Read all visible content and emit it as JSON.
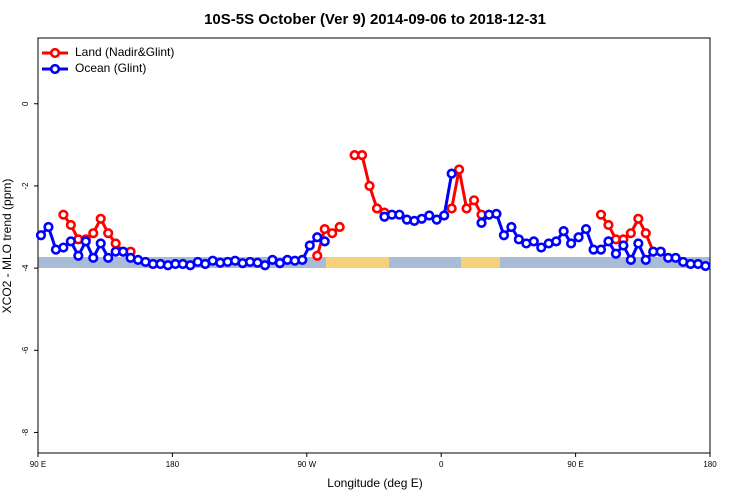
{
  "chart_data": {
    "type": "line",
    "title": "10S-5S October (Ver 9)   2014-09-06 to 2018-12-31",
    "x_label": "Longitude (deg E)",
    "y_label": "XCO2 - MLO trend (ppm)",
    "x": [
      92,
      97,
      102,
      107,
      112,
      117,
      122,
      127,
      132,
      137,
      142,
      147,
      152,
      157,
      162,
      167,
      172,
      177,
      182,
      187,
      192,
      197,
      202,
      207,
      212,
      217,
      222,
      227,
      232,
      237,
      242,
      247,
      252,
      257,
      262,
      267,
      272,
      277,
      282,
      287,
      292,
      297,
      302,
      307,
      312,
      317,
      322,
      327,
      332,
      337,
      342,
      347,
      352,
      357,
      362,
      367,
      372,
      377,
      382,
      387,
      392,
      397,
      402,
      407,
      412,
      417,
      422,
      427,
      432,
      437,
      442,
      447,
      452,
      457,
      462,
      467,
      472,
      477,
      482,
      487,
      492,
      497,
      502,
      507,
      512,
      517,
      522,
      527,
      532,
      537
    ],
    "series": [
      {
        "name": "Land (Nadir&Glint)",
        "color": "#ff0000",
        "values": [
          null,
          null,
          null,
          -2.7,
          -2.95,
          -3.3,
          -3.3,
          -3.15,
          -2.8,
          -3.15,
          -3.4,
          -3.6,
          -3.6,
          null,
          null,
          null,
          null,
          null,
          null,
          null,
          null,
          null,
          null,
          null,
          null,
          null,
          null,
          null,
          null,
          null,
          null,
          null,
          null,
          null,
          null,
          null,
          null,
          -3.7,
          -3.05,
          -3.15,
          -3.0,
          null,
          -1.25,
          -1.25,
          -2.0,
          -2.55,
          -2.65,
          null,
          null,
          null,
          null,
          null,
          null,
          null,
          null,
          -2.55,
          -1.6,
          -2.55,
          -2.35,
          -2.7,
          -2.7,
          null,
          null,
          null,
          null,
          null,
          null,
          null,
          null,
          null,
          null,
          null,
          null,
          null,
          null,
          -2.7,
          -2.95,
          -3.3,
          -3.3,
          -3.15,
          -2.8,
          -3.15,
          -3.6,
          -3.6,
          null,
          null,
          null,
          null,
          null,
          null
        ]
      },
      {
        "name": "Ocean (Glint)",
        "color": "#0000ff",
        "values": [
          -3.2,
          -3.0,
          -3.55,
          -3.5,
          -3.35,
          -3.7,
          -3.35,
          -3.75,
          -3.4,
          -3.75,
          -3.6,
          -3.6,
          -3.75,
          -3.8,
          -3.85,
          -3.9,
          -3.9,
          -3.93,
          -3.9,
          -3.9,
          -3.93,
          -3.85,
          -3.9,
          -3.82,
          -3.87,
          -3.85,
          -3.82,
          -3.88,
          -3.85,
          -3.87,
          -3.93,
          -3.8,
          -3.88,
          -3.8,
          -3.82,
          -3.8,
          -3.45,
          -3.25,
          -3.35,
          null,
          null,
          null,
          null,
          null,
          null,
          null,
          -2.75,
          -2.7,
          -2.7,
          -2.82,
          -2.85,
          -2.8,
          -2.72,
          -2.82,
          -2.72,
          -1.7,
          null,
          null,
          null,
          -2.9,
          -2.7,
          -2.68,
          -3.2,
          -3.0,
          -3.3,
          -3.4,
          -3.35,
          -3.5,
          -3.4,
          -3.35,
          -3.1,
          -3.4,
          -3.25,
          -3.05,
          -3.55,
          -3.55,
          -3.35,
          -3.65,
          -3.45,
          -3.8,
          -3.4,
          -3.8,
          -3.6,
          -3.6,
          -3.75,
          -3.75,
          -3.85,
          -3.9,
          -3.9,
          -3.95
        ]
      }
    ],
    "xlim": [
      90,
      540
    ],
    "xticks": [
      {
        "value": 90,
        "label": "90 E"
      },
      180,
      {
        "value": 270,
        "label": "90 W"
      },
      {
        "value": 360,
        "label": "0"
      },
      {
        "value": 450,
        "label": "90 E"
      },
      {
        "value": 540,
        "label": "180"
      }
    ],
    "ylim": [
      -8.5,
      1.6
    ],
    "yticks": [
      0,
      -2,
      -4,
      -6,
      -8
    ],
    "legend": "top-left"
  }
}
